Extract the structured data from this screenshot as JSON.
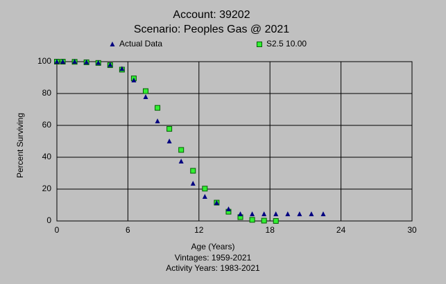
{
  "chart_data": {
    "type": "scatter",
    "title": "Account: 39202",
    "subtitle": "Scenario: Peoples Gas @ 2021",
    "x_label": "Age (Years)",
    "y_label": "Percent Surviving",
    "annotations": [
      "Vintages: 1959-2021",
      "Activity Years: 1983-2021"
    ],
    "x": [
      0,
      0.5,
      1.5,
      2.5,
      3.5,
      4.5,
      5.5,
      6.5,
      7.5,
      8.5,
      9.5,
      10.5,
      11.5,
      12.5,
      13.5,
      14.5,
      15.5,
      16.5,
      17.5,
      18.5,
      19.5,
      20.5,
      21.5,
      22.5
    ],
    "series": [
      {
        "name": "Actual Data",
        "color": "#000080",
        "marker": "triangle",
        "values": [
          100,
          100,
          100,
          99.7,
          99.3,
          98,
          95.5,
          88.3,
          77.8,
          62.6,
          50,
          37.4,
          23.5,
          15.2,
          11.3,
          7.4,
          4.3,
          4.3,
          4.3,
          4.3,
          4.3,
          4.3,
          4.3,
          4.3
        ]
      },
      {
        "name": "S2.5 10.00",
        "color": "#33ee33",
        "marker": "square",
        "values": [
          100,
          100,
          99.9,
          99.6,
          99.2,
          97.8,
          95,
          89.5,
          81.5,
          71,
          57.8,
          44.6,
          31.5,
          20.3,
          11.5,
          5.8,
          2.4,
          0.7,
          0.2,
          0,
          null,
          null,
          null,
          null
        ]
      }
    ],
    "xlim": [
      0,
      30
    ],
    "xticks": [
      0,
      6,
      12,
      18,
      24,
      30
    ],
    "ylim": [
      0,
      100
    ],
    "yticks": [
      0,
      20,
      40,
      60,
      80,
      100
    ],
    "grid": true
  }
}
